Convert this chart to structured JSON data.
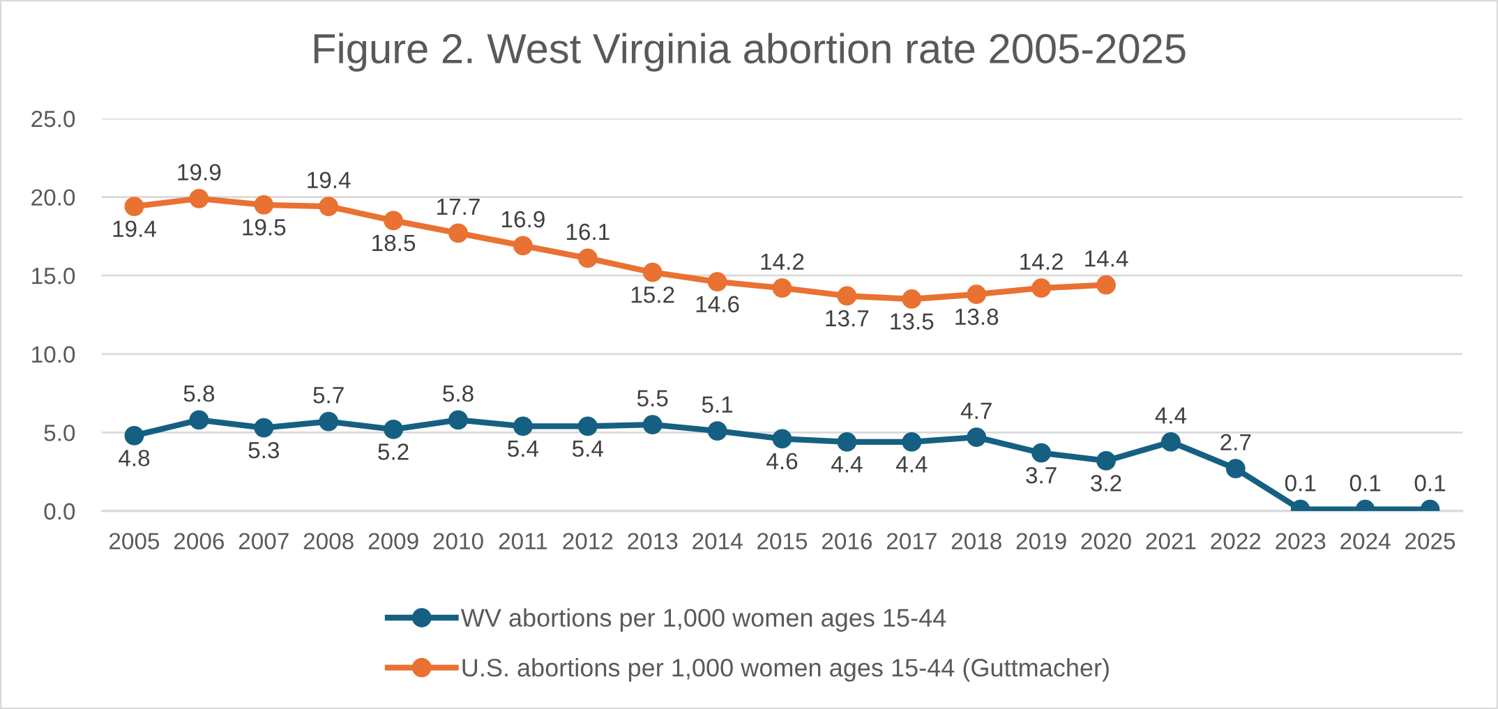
{
  "chart_data": {
    "type": "line",
    "title": "Figure 2. West Virginia abortion rate 2005-2025",
    "categories": [
      "2005",
      "2006",
      "2007",
      "2008",
      "2009",
      "2010",
      "2011",
      "2012",
      "2013",
      "2014",
      "2015",
      "2016",
      "2017",
      "2018",
      "2019",
      "2020",
      "2021",
      "2022",
      "2023",
      "2024",
      "2025"
    ],
    "series": [
      {
        "name": "WV abortions per 1,000 women ages 15-44",
        "color": "#156082",
        "values": [
          4.8,
          5.8,
          5.3,
          5.7,
          5.2,
          5.8,
          5.4,
          5.4,
          5.5,
          5.1,
          4.6,
          4.4,
          4.4,
          4.7,
          3.7,
          3.2,
          4.4,
          2.7,
          0.1,
          0.1,
          0.1
        ]
      },
      {
        "name": "U.S. abortions per 1,000 women ages 15-44 (Guttmacher)",
        "color": "#e97132",
        "values": [
          19.4,
          19.9,
          19.5,
          19.4,
          18.5,
          17.7,
          16.9,
          16.1,
          15.2,
          14.6,
          14.2,
          13.7,
          13.5,
          13.8,
          14.2,
          14.4,
          null,
          null,
          null,
          null,
          null
        ]
      }
    ],
    "ylim": [
      0,
      25
    ],
    "yticks": [
      {
        "value": 0,
        "label": "0.0"
      },
      {
        "value": 5,
        "label": "5.0"
      },
      {
        "value": 10,
        "label": "10.0"
      },
      {
        "value": 15,
        "label": "15.0"
      },
      {
        "value": 20,
        "label": "20.0"
      },
      {
        "value": 25,
        "label": "25.0"
      }
    ],
    "grid": "y",
    "legend": "bottom",
    "marker": "circle",
    "line_style": "solid",
    "data_labels": true
  }
}
